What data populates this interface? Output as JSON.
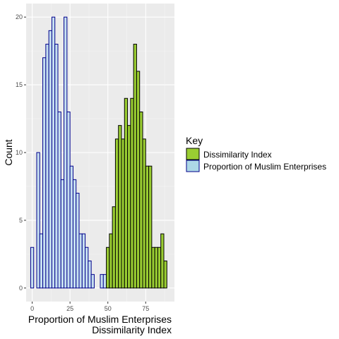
{
  "chart_data": {
    "type": "bar",
    "subtype": "overlaid histogram",
    "title": "",
    "xlabel_lines": [
      "Proportion of Muslim Enterprises",
      "Dissimilarity Index"
    ],
    "ylabel": "Count",
    "xlim": [
      -4,
      94
    ],
    "ylim": [
      -1,
      21
    ],
    "x_ticks": [
      0,
      25,
      50,
      75
    ],
    "x_tick_labels": [
      "0",
      "25",
      "50",
      "75"
    ],
    "y_ticks": [
      0,
      5,
      10,
      15,
      20
    ],
    "y_tick_labels": [
      "0",
      "5",
      "10",
      "15",
      "20"
    ],
    "bin_width": 2,
    "grid": true,
    "legend": {
      "title": "Key",
      "position": "right",
      "entries": [
        {
          "label": "Dissimilarity Index",
          "fill": "#9acd32",
          "stroke": "#000000"
        },
        {
          "label": "Proportion of Muslim Enterprises",
          "fill": "#add8e6",
          "stroke": "#00008b"
        }
      ]
    },
    "series": [
      {
        "name": "Proportion of Muslim Enterprises",
        "fill": "#c6dff0",
        "stroke": "#00008b",
        "bin_starts": [
          -1,
          1,
          3,
          5,
          7,
          9,
          11,
          13,
          15,
          17,
          19,
          21,
          23,
          25,
          27,
          29,
          31,
          33,
          35,
          37,
          39,
          41,
          43,
          45,
          47
        ],
        "counts": [
          3,
          0,
          10,
          4,
          17,
          18,
          19,
          20,
          18,
          13,
          8,
          20,
          13,
          9,
          8,
          7,
          4,
          4,
          3,
          2,
          1,
          0,
          0,
          1,
          1
        ]
      },
      {
        "name": "Dissimilarity Index",
        "fill": "#9acd32",
        "stroke": "#000000",
        "bin_starts": [
          49,
          51,
          53,
          55,
          57,
          59,
          61,
          63,
          65,
          67,
          69,
          71,
          73,
          75,
          77,
          79,
          81,
          83,
          85,
          87
        ],
        "counts": [
          3,
          4,
          6,
          11,
          12,
          11,
          14,
          12,
          14,
          18,
          16,
          13,
          11,
          9,
          9,
          3,
          3,
          3,
          4,
          2
        ]
      }
    ]
  }
}
